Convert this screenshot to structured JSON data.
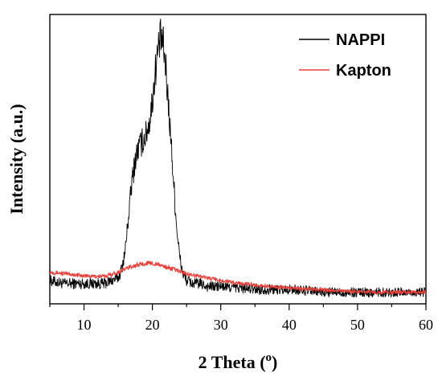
{
  "chart_data": {
    "type": "line",
    "xlabel": "2 Theta (",
    "xlabel_sup": "o",
    "xlabel_end": ")",
    "ylabel": "Intensity (a.u.)",
    "xlim": [
      5,
      60
    ],
    "ylim": [
      0,
      100
    ],
    "x_ticks": [
      10,
      20,
      30,
      40,
      50,
      60
    ],
    "x_tick_labels": [
      "10",
      "20",
      "30",
      "40",
      "50",
      "60"
    ],
    "y_tick_labels": false,
    "grid": false,
    "legend_position": "top-right",
    "series": [
      {
        "name": "NAPPI",
        "color": "#000000",
        "noise": 2.5,
        "x": [
          5,
          7,
          9,
          11,
          13,
          14,
          15,
          15.5,
          16,
          16.5,
          17,
          17.5,
          18,
          18.5,
          19,
          19.5,
          20,
          20.5,
          21,
          21.3,
          21.6,
          22,
          22.5,
          23,
          23.5,
          24,
          24.5,
          25,
          26,
          27,
          28,
          30,
          35,
          40,
          45,
          50,
          55,
          60
        ],
        "y": [
          8,
          7,
          7,
          7,
          7,
          8,
          9,
          12,
          18,
          30,
          42,
          50,
          54,
          56,
          58,
          62,
          70,
          82,
          90,
          92,
          89,
          80,
          64,
          46,
          28,
          16,
          10,
          8,
          7,
          7,
          6,
          6,
          5,
          5,
          4,
          4,
          4,
          4
        ]
      },
      {
        "name": "Kapton",
        "color": "#e8403a",
        "noise": 0.8,
        "x": [
          5,
          7,
          9,
          11,
          13,
          15,
          17,
          19,
          20,
          21,
          23,
          25,
          27,
          30,
          35,
          40,
          45,
          50,
          55,
          60
        ],
        "y": [
          11,
          10.5,
          10,
          9.5,
          9.5,
          11,
          13,
          14,
          14,
          13.5,
          12,
          10.5,
          9.5,
          8,
          6.5,
          5.5,
          4.8,
          4.2,
          4,
          4
        ]
      }
    ]
  }
}
